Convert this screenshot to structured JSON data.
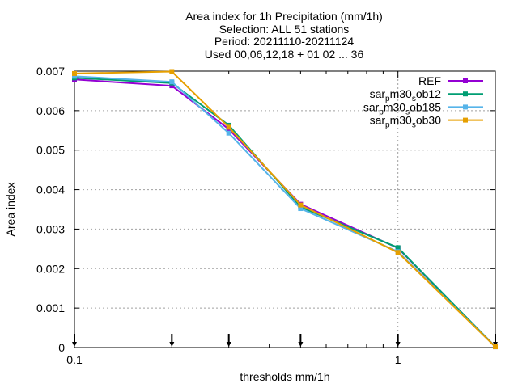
{
  "chart_data": {
    "type": "line",
    "title": [
      "Area index  for 1h Precipitation (mm/1h)",
      "Selection: ALL     51 stations",
      "Period: 20211110-20211124",
      "Used 00,06,12,18 + 01 02 ... 36"
    ],
    "xlabel": "thresholds mm/1h",
    "ylabel": "Area index",
    "xscale": "log",
    "xlim": [
      0.1,
      2.0
    ],
    "ylim": [
      0,
      0.007
    ],
    "x_ticks": [
      {
        "value": 0.1,
        "label": "0.1"
      },
      {
        "value": 1,
        "label": "1"
      }
    ],
    "y_ticks": [
      {
        "value": 0,
        "label": "0"
      },
      {
        "value": 0.001,
        "label": "0.001"
      },
      {
        "value": 0.002,
        "label": "0.002"
      },
      {
        "value": 0.003,
        "label": "0.003"
      },
      {
        "value": 0.004,
        "label": "0.004"
      },
      {
        "value": 0.005,
        "label": "0.005"
      },
      {
        "value": 0.006,
        "label": "0.006"
      },
      {
        "value": 0.007,
        "label": "0.007"
      }
    ],
    "grid": true,
    "legend_position": "top-right",
    "x": [
      0.1,
      0.2,
      0.3,
      0.5,
      1.0,
      2.0
    ],
    "series": [
      {
        "name": "REF",
        "legend": {
          "main": "REF"
        },
        "color": "#9400d3",
        "values": [
          0.00679,
          0.00663,
          0.00553,
          0.00363,
          0.00252,
          2e-05
        ]
      },
      {
        "name": "sar_pm30_sob12",
        "legend": {
          "main": "sar",
          "sub1": "p",
          "mid": "m30",
          "sub2": "s",
          "end": "ob12"
        },
        "color": "#009e73",
        "values": [
          0.00683,
          0.0067,
          0.00563,
          0.00356,
          0.00253,
          2e-05
        ]
      },
      {
        "name": "sar_pm30_sob185",
        "legend": {
          "main": "sar",
          "sub1": "p",
          "mid": "m30",
          "sub2": "s",
          "end": "ob185"
        },
        "color": "#56b4e9",
        "values": [
          0.00687,
          0.00673,
          0.00543,
          0.00352,
          0.00243,
          2e-05
        ]
      },
      {
        "name": "sar_pm30_sob30",
        "legend": {
          "main": "sar",
          "sub1": "p",
          "mid": "m30",
          "sub2": "s",
          "end": "ob30"
        },
        "color": "#e69f00",
        "values": [
          0.00694,
          0.00699,
          0.00558,
          0.00361,
          0.00241,
          2e-05
        ]
      }
    ]
  }
}
